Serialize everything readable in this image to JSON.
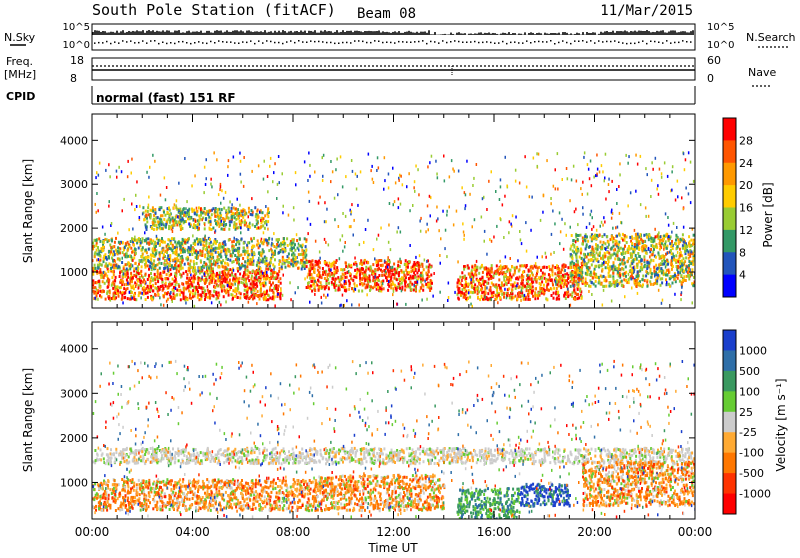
{
  "header": {
    "station": "South Pole Station (fitACF)",
    "beam": "Beam 08",
    "date": "11/Mar/2015"
  },
  "strips": {
    "nsky_label": "N.Sky",
    "nsearch_label": "N.Search",
    "top_tick_hi": "10^5",
    "top_tick_lo": "10^0",
    "freq_label": "Freq.",
    "freq_unit": "[MHz]",
    "freq_ticks": [
      "18",
      "8"
    ],
    "nave_label": "Nave",
    "nave_ticks": [
      "60",
      "0"
    ],
    "cpid_label": "CPID",
    "cpid_value": "normal (fast) 151 RF"
  },
  "chart_data": [
    {
      "type": "heatmap",
      "name": "power-panel",
      "xlabel": "",
      "ylabel": "Slant Range [km]",
      "x_ticks": [
        "00:00",
        "04:00",
        "08:00",
        "12:00",
        "16:00",
        "20:00",
        "00:00"
      ],
      "xlim_hours": [
        0,
        24
      ],
      "y_ticks": [
        1000,
        2000,
        3000,
        4000
      ],
      "ylim_km": [
        180,
        4600
      ],
      "colorbar": {
        "label": "Power [dB]",
        "ticks": [
          "28",
          "24",
          "20",
          "16",
          "12",
          "8",
          "4"
        ],
        "colors": [
          "#ff0000",
          "#ff5500",
          "#ff9900",
          "#ffcc00",
          "#99cc33",
          "#339966",
          "#2255bb",
          "#0000ff"
        ]
      },
      "regions": [
        {
          "t0": 0.0,
          "t1": 7.5,
          "r0": 400,
          "r1": 1100,
          "level": "high"
        },
        {
          "t0": 0.0,
          "t1": 8.5,
          "r0": 1100,
          "r1": 1800,
          "level": "medium"
        },
        {
          "t0": 2.0,
          "t1": 7.0,
          "r0": 2000,
          "r1": 2500,
          "level": "medium"
        },
        {
          "t0": 8.5,
          "t1": 13.5,
          "r0": 600,
          "r1": 1300,
          "level": "high"
        },
        {
          "t0": 14.5,
          "t1": 19.5,
          "r0": 400,
          "r1": 1200,
          "level": "high"
        },
        {
          "t0": 19.0,
          "t1": 24.0,
          "r0": 700,
          "r1": 1900,
          "level": "medium"
        }
      ]
    },
    {
      "type": "heatmap",
      "name": "velocity-panel",
      "xlabel": "Time UT",
      "ylabel": "Slant Range [km]",
      "x_ticks": [
        "00:00",
        "04:00",
        "08:00",
        "12:00",
        "16:00",
        "20:00",
        "00:00"
      ],
      "xlim_hours": [
        0,
        24
      ],
      "y_ticks": [
        1000,
        2000,
        3000,
        4000
      ],
      "ylim_km": [
        180,
        4600
      ],
      "colorbar": {
        "label": "Velocity [m s⁻¹]",
        "ticks": [
          "1000",
          "500",
          "100",
          "25",
          "-25",
          "-100",
          "-500",
          "-1000"
        ],
        "colors": [
          "#1a3fcc",
          "#2f6fa8",
          "#3a9960",
          "#66cc33",
          "#cccccc",
          "#ffaa33",
          "#ff7700",
          "#ff3300",
          "#ff0000"
        ]
      },
      "regions": [
        {
          "t0": 0.0,
          "t1": 9.0,
          "r0": 400,
          "r1": 1100,
          "level": "receding"
        },
        {
          "t0": 0.0,
          "t1": 24.0,
          "r0": 1450,
          "r1": 1800,
          "level": "ground-scatter"
        },
        {
          "t0": 9.0,
          "t1": 14.0,
          "r0": 400,
          "r1": 1200,
          "level": "receding"
        },
        {
          "t0": 14.5,
          "t1": 17.0,
          "r0": 200,
          "r1": 900,
          "level": "approaching-slow"
        },
        {
          "t0": 17.0,
          "t1": 19.0,
          "r0": 500,
          "r1": 1000,
          "level": "approaching-fast"
        },
        {
          "t0": 19.5,
          "t1": 24.0,
          "r0": 500,
          "r1": 1500,
          "level": "receding"
        }
      ]
    }
  ]
}
